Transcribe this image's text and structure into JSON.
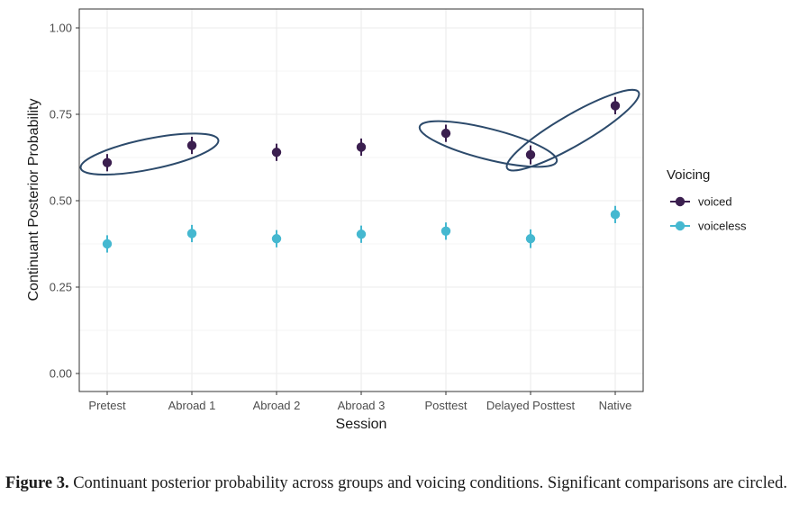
{
  "chart_data": {
    "type": "scatter",
    "title": "",
    "xlabel": "Session",
    "ylabel": "Continuant Posterior Probability",
    "ylim": [
      0,
      1
    ],
    "yticks": [
      "0.00",
      "0.25",
      "0.50",
      "0.75",
      "1.00"
    ],
    "ytick_values": [
      0,
      0.25,
      0.5,
      0.75,
      1.0
    ],
    "categories": [
      "Pretest",
      "Abroad 1",
      "Abroad 2",
      "Abroad 3",
      "Posttest",
      "Delayed Posttest",
      "Native"
    ],
    "legend": {
      "title": "Voicing",
      "placement": "right"
    },
    "grid": true,
    "series": [
      {
        "name": "voiced",
        "color": "#3b1f4f",
        "values": [
          0.61,
          0.66,
          0.64,
          0.655,
          0.695,
          0.633,
          0.775
        ],
        "lower": [
          0.585,
          0.635,
          0.615,
          0.63,
          0.67,
          0.605,
          0.75
        ],
        "upper": [
          0.635,
          0.685,
          0.665,
          0.68,
          0.72,
          0.66,
          0.8
        ]
      },
      {
        "name": "voiceless",
        "color": "#45b8d0",
        "values": [
          0.375,
          0.405,
          0.39,
          0.403,
          0.412,
          0.39,
          0.46
        ],
        "lower": [
          0.35,
          0.38,
          0.365,
          0.378,
          0.387,
          0.363,
          0.435
        ],
        "upper": [
          0.4,
          0.43,
          0.415,
          0.428,
          0.437,
          0.417,
          0.485
        ]
      }
    ],
    "annotations": [
      {
        "shape": "ellipse",
        "label": "significant comparison",
        "between": [
          "Pretest",
          "Abroad 1"
        ],
        "series": "voiced"
      },
      {
        "shape": "ellipse",
        "label": "significant comparison",
        "between": [
          "Posttest",
          "Delayed Posttest"
        ],
        "series": "voiced"
      },
      {
        "shape": "ellipse",
        "label": "significant comparison",
        "between": [
          "Delayed Posttest",
          "Native"
        ],
        "series": "voiced"
      }
    ],
    "annotation_color": "#2c4a6b"
  },
  "caption": {
    "label": "Figure 3.",
    "text": " Continuant posterior probability across groups and voicing conditions. Significant comparisons are circled."
  }
}
